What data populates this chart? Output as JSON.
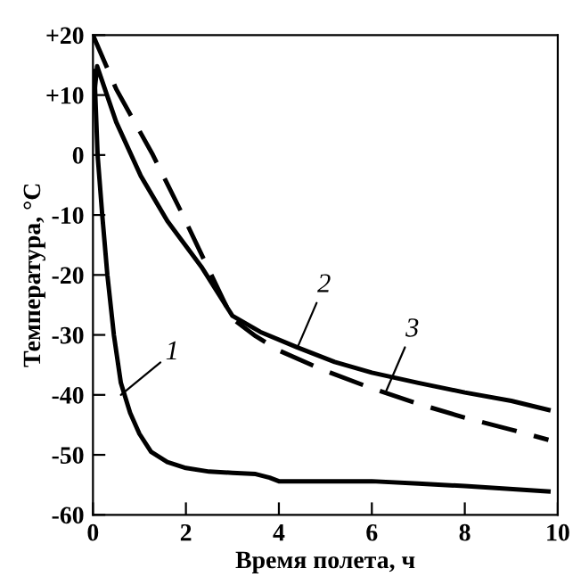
{
  "chart_data": {
    "type": "line",
    "xlabel": "Время полета, ч",
    "ylabel": "Температура, °C",
    "xlim": [
      0,
      10
    ],
    "ylim": [
      -60,
      20
    ],
    "xticks": [
      0,
      2,
      4,
      6,
      8,
      10
    ],
    "yticks": [
      {
        "value": 20,
        "label": "+20"
      },
      {
        "value": 10,
        "label": "+10"
      },
      0,
      {
        "value": -10,
        "label": "-10"
      },
      {
        "value": -20,
        "label": "-20"
      },
      {
        "value": -30,
        "label": "-30"
      },
      {
        "value": -40,
        "label": "-40"
      },
      {
        "value": -50,
        "label": "-50"
      },
      {
        "value": -60,
        "label": "-60"
      }
    ],
    "grid": false,
    "legend": false,
    "series": [
      {
        "color": "#000000",
        "line_style": "solid",
        "x": [
          0.03,
          0.1,
          0.2,
          0.31,
          0.45,
          0.6,
          0.8,
          1.0,
          1.25,
          1.6,
          2.0,
          2.5,
          3.0,
          3.5,
          3.8,
          4.0,
          5.0,
          6.0,
          7.0,
          8.0,
          9.8
        ],
        "values": [
          14,
          0,
          -10,
          -20,
          -30,
          -38,
          -43,
          -46.5,
          -49.5,
          -51.2,
          -52.2,
          -52.8,
          -53,
          -53.2,
          -53.8,
          -54.4,
          -54.4,
          -54.4,
          -54.8,
          -55.2,
          -56.1
        ]
      },
      {
        "color": "#000000",
        "line_style": "solid",
        "x": [
          0,
          0.09,
          0.5,
          1.03,
          1.6,
          2.33,
          3.0,
          3.6,
          4.4,
          5.2,
          6.0,
          7.0,
          8.0,
          9.0,
          9.8
        ],
        "values": [
          8,
          14.8,
          5.5,
          -3.5,
          -11,
          -18.6,
          -26.8,
          -29.5,
          -32.1,
          -34.5,
          -36.3,
          -38,
          -39.6,
          -41,
          -42.5
        ]
      },
      {
        "color": "#000000",
        "line_style": "dashed",
        "x": [
          0,
          0.5,
          1.29,
          1.9,
          2.46,
          3.0,
          3.5,
          4.0,
          5.0,
          6.0,
          7.0,
          8.0,
          9.0,
          9.8
        ],
        "values": [
          20,
          11,
          0,
          -9.5,
          -18.6,
          -27.3,
          -30.2,
          -32.6,
          -36,
          -38.9,
          -41.5,
          -43.8,
          -45.8,
          -47.5
        ]
      }
    ],
    "annotations": [
      {
        "text": "1",
        "x": 0.6,
        "y": -40
      },
      {
        "text": "2",
        "x": 4.4,
        "y": -32.1
      },
      {
        "text": "3",
        "x": 6.3,
        "y": -39.5
      }
    ]
  }
}
